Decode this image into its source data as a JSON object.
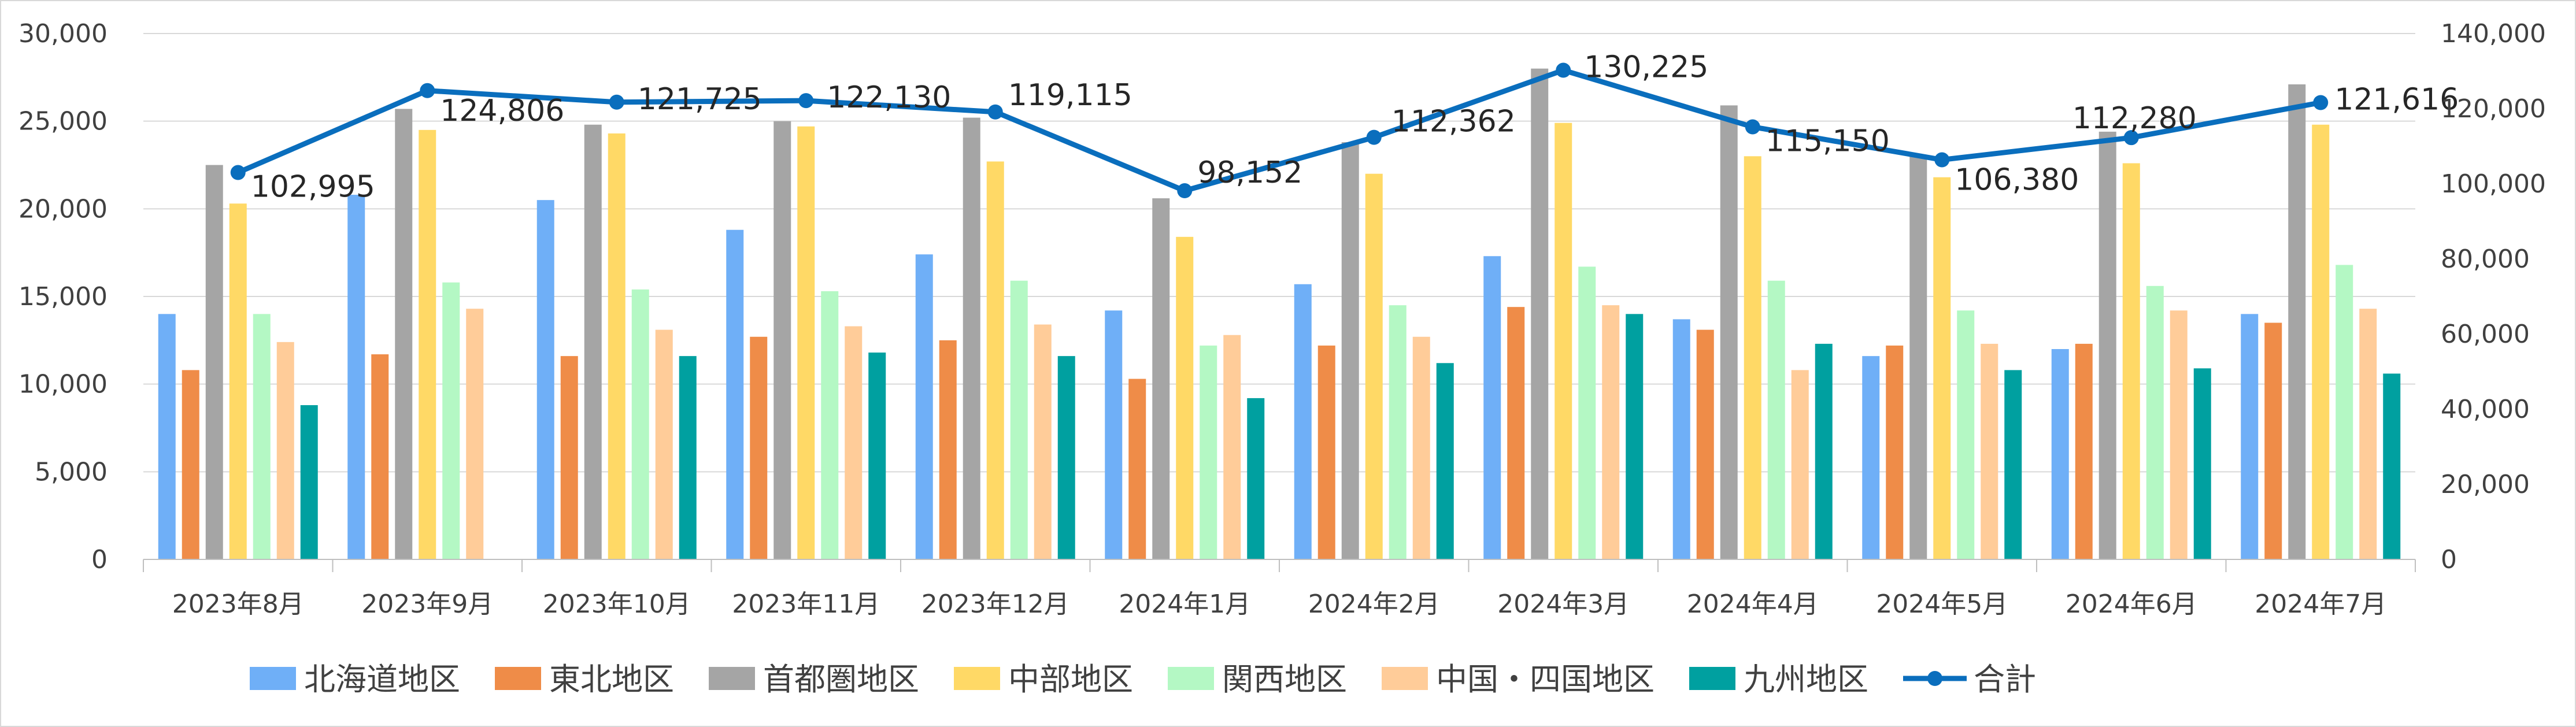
{
  "chart_data": {
    "type": "bar",
    "title": "",
    "xlabel": "",
    "ylabel": "",
    "categories": [
      "2023年8月",
      "2023年9月",
      "2023年10月",
      "2023年11月",
      "2023年12月",
      "2024年1月",
      "2024年2月",
      "2024年3月",
      "2024年4月",
      "2024年5月",
      "2024年6月",
      "2024年7月"
    ],
    "ylim": [
      0,
      30000
    ],
    "yticks": [
      "0",
      "5,000",
      "10,000",
      "15,000",
      "20,000",
      "25,000",
      "30,000"
    ],
    "y2lim": [
      0,
      140000
    ],
    "y2ticks": [
      "0",
      "20,000",
      "40,000",
      "60,000",
      "80,000",
      "100,000",
      "120,000",
      "140,000"
    ],
    "grid": true,
    "legend_position": "bottom",
    "series": [
      {
        "name": "北海道地区",
        "color": "#6FAFF7",
        "values": [
          14000,
          20800,
          20500,
          18800,
          17400,
          14200,
          15700,
          17300,
          13700,
          11600,
          12000,
          14000
        ]
      },
      {
        "name": "東北地区",
        "color": "#EF8C48",
        "values": [
          10800,
          11700,
          11600,
          12700,
          12500,
          10300,
          12200,
          14400,
          13100,
          12200,
          12300,
          13500
        ]
      },
      {
        "name": "首都圏地区",
        "color": "#A5A5A5",
        "values": [
          22500,
          25700,
          24800,
          25000,
          25200,
          20600,
          23800,
          28000,
          25900,
          23000,
          24400,
          27100
        ]
      },
      {
        "name": "中部地区",
        "color": "#FFD966",
        "values": [
          20300,
          24500,
          24300,
          24700,
          22700,
          18400,
          22000,
          24900,
          23000,
          21800,
          22600,
          24800
        ]
      },
      {
        "name": "関西地区",
        "color": "#B4F8C4",
        "values": [
          14000,
          15800,
          15400,
          15300,
          15900,
          12200,
          14500,
          16700,
          15900,
          14200,
          15600,
          16800
        ]
      },
      {
        "name": "中国・四国地区",
        "color": "#FFCC99",
        "values": [
          12400,
          14300,
          13100,
          13300,
          13400,
          12800,
          12700,
          14500,
          10800,
          12300,
          14200,
          14300
        ]
      },
      {
        "name": "九州地区",
        "color": "#00A0A0",
        "values": [
          8800,
          null,
          11600,
          11800,
          11600,
          9200,
          11200,
          14000,
          12300,
          10800,
          10900,
          10600
        ]
      }
    ],
    "line_series": {
      "name": "合計",
      "color": "#0A6EBD",
      "axis": "secondary",
      "values": [
        102995,
        124806,
        121725,
        122130,
        119115,
        98152,
        112362,
        130225,
        115150,
        106380,
        112280,
        121616
      ],
      "labels": [
        "102,995",
        "124,806",
        "121,725",
        "122,130",
        "119,115",
        "98,152",
        "112,362",
        "130,225",
        "115,150",
        "106,380",
        "112,280",
        "121,616"
      ]
    }
  }
}
